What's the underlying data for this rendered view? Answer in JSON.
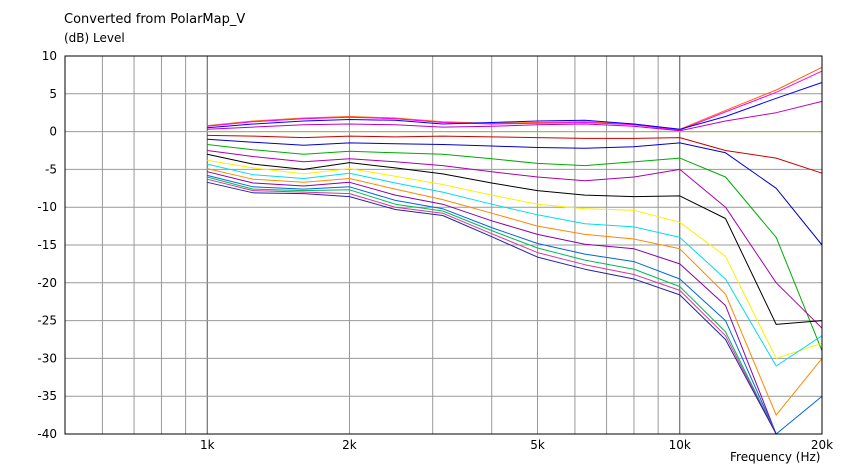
{
  "chart_data": {
    "type": "line",
    "title": "Converted from PolarMap_V",
    "ylabel": "(dB)  Level",
    "xlabel": "Frequency  (Hz)",
    "x_scale": "log",
    "xlim": [
      500,
      20000
    ],
    "ylim": [
      -40,
      10
    ],
    "grid": true,
    "x_ticks": [
      {
        "value": 1000,
        "label": "1k"
      },
      {
        "value": 2000,
        "label": "2k"
      },
      {
        "value": 5000,
        "label": "5k"
      },
      {
        "value": 10000,
        "label": "10k"
      },
      {
        "value": 20000,
        "label": "20k"
      }
    ],
    "y_ticks": [
      10,
      5,
      0,
      -5,
      -10,
      -15,
      -20,
      -25,
      -30,
      -35,
      -40
    ],
    "x": [
      1000,
      1250,
      1600,
      2000,
      2500,
      3150,
      4000,
      5000,
      6300,
      8000,
      10000,
      12500,
      16000,
      20000
    ],
    "series": [
      {
        "color": "#ff6600",
        "values": [
          0.8,
          1.4,
          1.8,
          2.0,
          1.8,
          1.3,
          1.1,
          1.2,
          1.3,
          1.0,
          0.3,
          2.8,
          5.5,
          8.5
        ]
      },
      {
        "color": "#ff00ff",
        "values": [
          0.7,
          1.3,
          1.7,
          1.9,
          1.7,
          1.2,
          1.0,
          1.1,
          1.2,
          0.9,
          0.2,
          2.6,
          5.2,
          8.0
        ]
      },
      {
        "color": "#0000ff",
        "values": [
          0.5,
          1.0,
          1.4,
          1.6,
          1.5,
          1.0,
          1.2,
          1.4,
          1.5,
          1.0,
          0.3,
          2.0,
          4.4,
          6.5
        ]
      },
      {
        "color": "#c000c0",
        "values": [
          0.3,
          0.6,
          0.9,
          1.0,
          0.9,
          0.6,
          0.7,
          0.9,
          1.0,
          0.7,
          0.1,
          1.4,
          2.5,
          4.0
        ]
      },
      {
        "color": "#99cc00",
        "values": [
          0,
          0,
          0,
          0,
          0,
          0,
          0,
          0,
          0,
          0,
          0,
          0,
          0,
          0
        ]
      },
      {
        "color": "#cc0000",
        "values": [
          -0.5,
          -0.6,
          -0.8,
          -0.6,
          -0.7,
          -0.6,
          -0.7,
          -0.8,
          -0.9,
          -0.9,
          -0.8,
          -2.5,
          -3.5,
          -5.5
        ]
      },
      {
        "color": "#0000cc",
        "values": [
          -1.0,
          -1.4,
          -1.8,
          -1.5,
          -1.6,
          -1.7,
          -1.9,
          -2.1,
          -2.2,
          -2.0,
          -1.5,
          -2.8,
          -7.5,
          -15.0
        ]
      },
      {
        "color": "#00aa00",
        "values": [
          -1.7,
          -2.4,
          -3.0,
          -2.6,
          -2.8,
          -3.0,
          -3.6,
          -4.2,
          -4.5,
          -4.0,
          -3.5,
          -6.0,
          -14.0,
          -29.0
        ]
      },
      {
        "color": "#aa00aa",
        "values": [
          -2.5,
          -3.3,
          -4.0,
          -3.6,
          -4.0,
          -4.5,
          -5.3,
          -6.0,
          -6.5,
          -6.0,
          -5.0,
          -10.0,
          -20.0,
          -26.0
        ]
      },
      {
        "color": "#000000",
        "values": [
          -3.0,
          -4.3,
          -5.0,
          -4.1,
          -4.8,
          -5.6,
          -6.8,
          -7.8,
          -8.4,
          -8.6,
          -8.5,
          -11.5,
          -25.5,
          -25.0
        ]
      },
      {
        "color": "#ffee00",
        "values": [
          -3.8,
          -4.8,
          -5.6,
          -4.9,
          -5.9,
          -7.0,
          -8.4,
          -9.6,
          -10.2,
          -10.4,
          -12.0,
          -16.5,
          -30.0,
          -28.0
        ]
      },
      {
        "color": "#00ddee",
        "values": [
          -4.3,
          -5.7,
          -6.2,
          -5.5,
          -6.8,
          -8.0,
          -9.6,
          -11.0,
          -12.2,
          -12.6,
          -14.0,
          -19.5,
          -31.0,
          -27.0
        ]
      },
      {
        "color": "#ff8800",
        "values": [
          -4.9,
          -6.3,
          -6.7,
          -6.2,
          -7.6,
          -9.0,
          -10.8,
          -12.5,
          -13.6,
          -14.2,
          -15.5,
          -21.5,
          -37.5,
          -30.0
        ]
      },
      {
        "color": "#8800aa",
        "values": [
          -5.3,
          -6.8,
          -7.2,
          -6.7,
          -8.4,
          -9.6,
          -11.8,
          -13.6,
          -14.9,
          -15.5,
          -17.5,
          -23.0,
          -40.0,
          -40.0
        ]
      },
      {
        "color": "#0066dd",
        "values": [
          -5.8,
          -7.3,
          -7.6,
          -7.3,
          -9.1,
          -10.2,
          -12.7,
          -14.8,
          -16.2,
          -17.2,
          -19.5,
          -25.0,
          -40.0,
          -35.0
        ]
      },
      {
        "color": "#00bb55",
        "values": [
          -6.0,
          -7.6,
          -7.8,
          -7.7,
          -9.6,
          -10.5,
          -13.1,
          -15.4,
          -17.0,
          -18.2,
          -20.5,
          -26.5,
          -40.0,
          -40.0
        ]
      },
      {
        "color": "#dd3399",
        "values": [
          -6.3,
          -7.8,
          -8.0,
          -8.2,
          -10.0,
          -10.8,
          -13.5,
          -16.0,
          -17.6,
          -18.9,
          -21.0,
          -27.0,
          -40.0,
          -40.0
        ]
      },
      {
        "color": "#2222aa",
        "values": [
          -6.7,
          -8.1,
          -8.2,
          -8.6,
          -10.3,
          -11.1,
          -13.9,
          -16.6,
          -18.2,
          -19.5,
          -21.6,
          -27.5,
          -40.0,
          -40.0
        ]
      }
    ]
  }
}
